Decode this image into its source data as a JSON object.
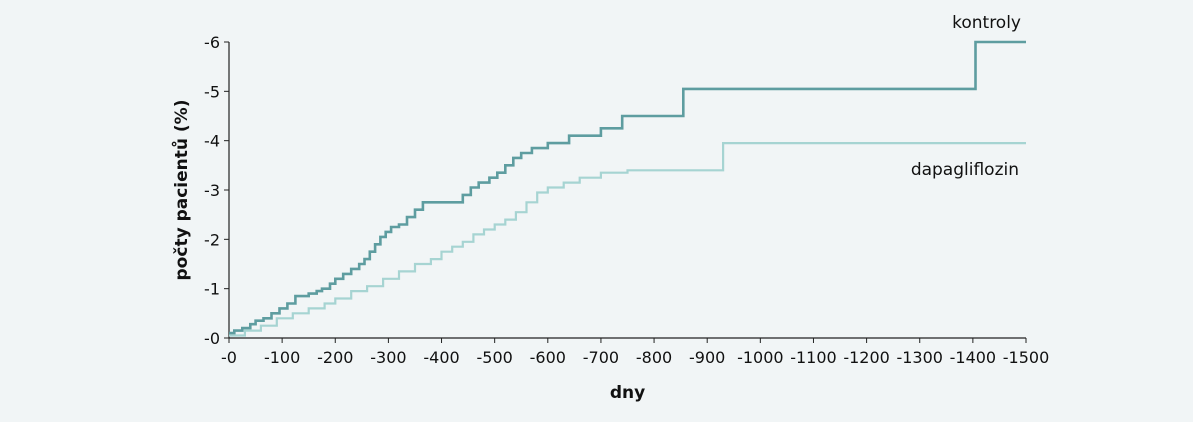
{
  "chart_data": {
    "type": "line",
    "title": "",
    "xlabel": "dny",
    "ylabel": "počty pacientů (%)",
    "xlim": [
      0,
      1500
    ],
    "ylim": [
      0,
      6
    ],
    "x_tick_labels": [
      "-0",
      "-100",
      "-200",
      "-300",
      "-400",
      "-500",
      "-600",
      "-700",
      "-800",
      "-900",
      "-1000",
      "-1100",
      "-1200",
      "-1300",
      "-1400",
      "-1500"
    ],
    "x_tick_values": [
      0,
      100,
      200,
      300,
      400,
      500,
      600,
      700,
      800,
      900,
      1000,
      1100,
      1200,
      1300,
      1400,
      1500
    ],
    "y_tick_labels": [
      "-0",
      "-1",
      "-2",
      "-3",
      "-4",
      "-5",
      "-6"
    ],
    "y_tick_values": [
      0,
      1,
      2,
      3,
      4,
      5,
      6
    ],
    "grid": false,
    "series": [
      {
        "name": "kontroly",
        "color": "#5e9da0",
        "step": true,
        "points": [
          [
            0,
            0.1
          ],
          [
            10,
            0.15
          ],
          [
            25,
            0.2
          ],
          [
            40,
            0.28
          ],
          [
            50,
            0.35
          ],
          [
            65,
            0.4
          ],
          [
            80,
            0.5
          ],
          [
            95,
            0.6
          ],
          [
            110,
            0.7
          ],
          [
            125,
            0.85
          ],
          [
            150,
            0.9
          ],
          [
            165,
            0.95
          ],
          [
            175,
            1.0
          ],
          [
            190,
            1.1
          ],
          [
            200,
            1.2
          ],
          [
            215,
            1.3
          ],
          [
            230,
            1.4
          ],
          [
            245,
            1.5
          ],
          [
            255,
            1.6
          ],
          [
            265,
            1.75
          ],
          [
            275,
            1.9
          ],
          [
            285,
            2.05
          ],
          [
            295,
            2.15
          ],
          [
            305,
            2.25
          ],
          [
            320,
            2.3
          ],
          [
            335,
            2.45
          ],
          [
            350,
            2.6
          ],
          [
            365,
            2.75
          ],
          [
            440,
            2.9
          ],
          [
            455,
            3.05
          ],
          [
            470,
            3.15
          ],
          [
            490,
            3.25
          ],
          [
            505,
            3.35
          ],
          [
            520,
            3.5
          ],
          [
            535,
            3.65
          ],
          [
            550,
            3.75
          ],
          [
            570,
            3.85
          ],
          [
            600,
            3.95
          ],
          [
            640,
            4.1
          ],
          [
            700,
            4.25
          ],
          [
            740,
            4.5
          ],
          [
            855,
            5.05
          ],
          [
            1405,
            6.0
          ],
          [
            1500,
            6.0
          ]
        ]
      },
      {
        "name": "dapagliflozin",
        "color": "#a6d4d2",
        "step": true,
        "points": [
          [
            0,
            0.05
          ],
          [
            30,
            0.15
          ],
          [
            60,
            0.25
          ],
          [
            90,
            0.4
          ],
          [
            120,
            0.5
          ],
          [
            150,
            0.6
          ],
          [
            180,
            0.7
          ],
          [
            200,
            0.8
          ],
          [
            230,
            0.95
          ],
          [
            260,
            1.05
          ],
          [
            290,
            1.2
          ],
          [
            320,
            1.35
          ],
          [
            350,
            1.5
          ],
          [
            380,
            1.6
          ],
          [
            400,
            1.75
          ],
          [
            420,
            1.85
          ],
          [
            440,
            1.95
          ],
          [
            460,
            2.1
          ],
          [
            480,
            2.2
          ],
          [
            500,
            2.3
          ],
          [
            520,
            2.4
          ],
          [
            540,
            2.55
          ],
          [
            560,
            2.75
          ],
          [
            580,
            2.95
          ],
          [
            600,
            3.05
          ],
          [
            630,
            3.15
          ],
          [
            660,
            3.25
          ],
          [
            700,
            3.35
          ],
          [
            750,
            3.4
          ],
          [
            930,
            3.95
          ],
          [
            1500,
            3.95
          ]
        ]
      }
    ]
  }
}
